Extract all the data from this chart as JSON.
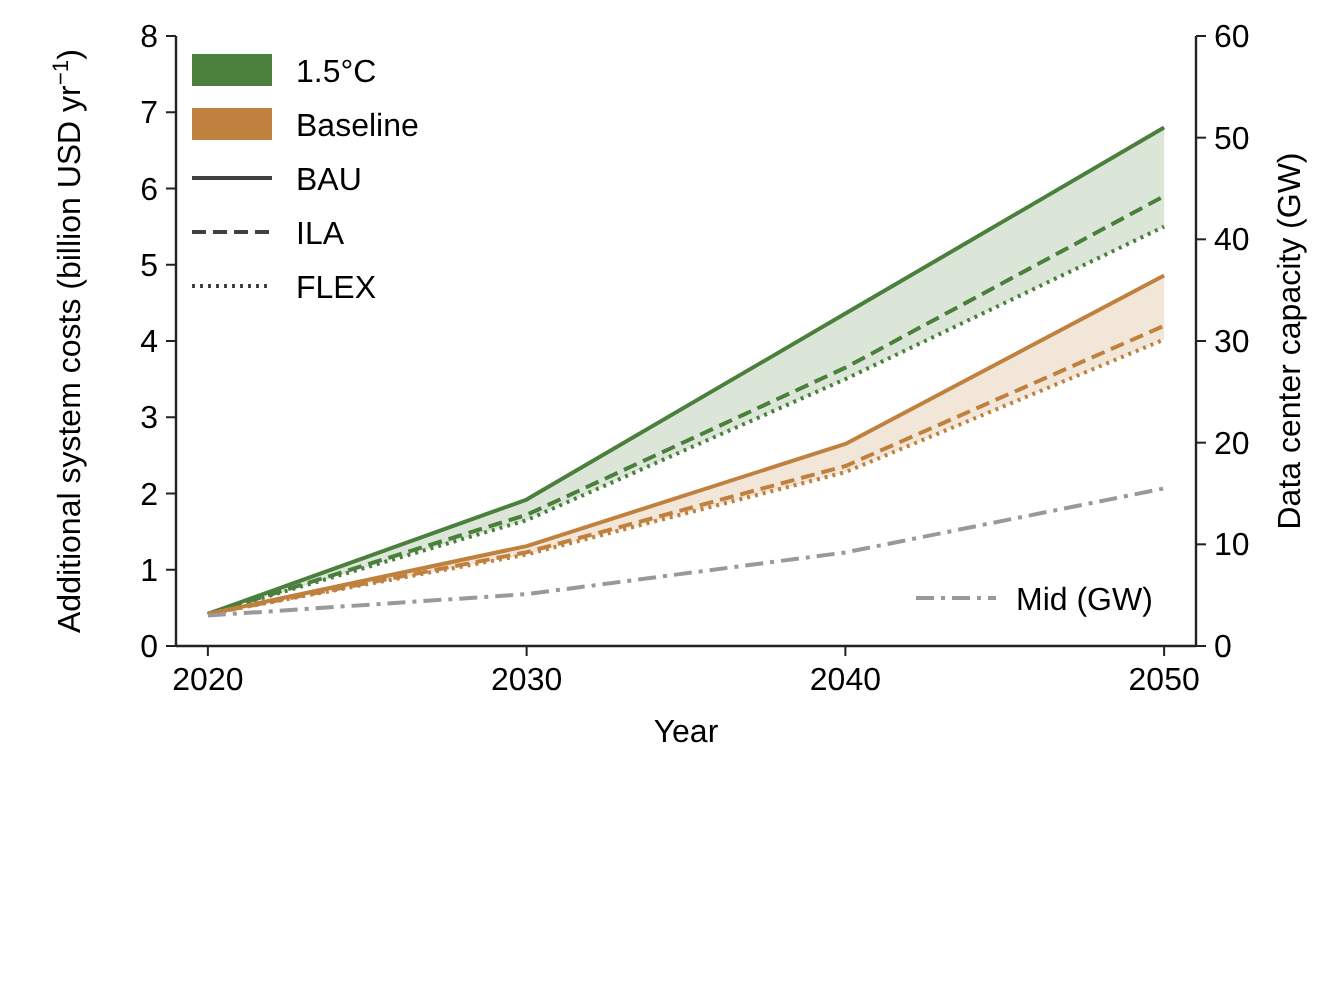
{
  "chart_data": {
    "type": "line",
    "xlabel": "Year",
    "ylabel": "Additional system costs (billion USD yr$^{−1}$)",
    "y2label": "Data center capacity (GW)",
    "x": [
      2020,
      2030,
      2040,
      2050
    ],
    "xlim": [
      2019,
      2051
    ],
    "xticks": [
      2020,
      2030,
      2040,
      2050
    ],
    "ylim": [
      0,
      8
    ],
    "yticks": [
      0,
      1,
      2,
      3,
      4,
      5,
      6,
      7,
      8
    ],
    "y2lim": [
      0,
      60
    ],
    "y2ticks": [
      0,
      10,
      20,
      30,
      40,
      50,
      60
    ],
    "legend": "top left",
    "grid": false,
    "marker": "none",
    "annotations": [
      "BAU",
      "ILA",
      "FLEX"
    ],
    "series": [
      {
        "name": "1.5°C",
        "color": "#4a7f3c",
        "line_style": "solid",
        "values": [
          0.42,
          1.92,
          4.36,
          6.8
        ],
        "lower": [
          0.42,
          1.65,
          3.5,
          5.5
        ],
        "upper": [
          0.42,
          1.92,
          4.36,
          6.8
        ]
      },
      {
        "color": "#4a7f3c",
        "line_style": "dashed",
        "values": [
          0.42,
          1.72,
          3.65,
          5.9
        ]
      },
      {
        "color": "#4a7f3c",
        "line_style": "dotted",
        "values": [
          0.42,
          1.65,
          3.5,
          5.5
        ]
      },
      {
        "name": "Baseline",
        "color": "#c0803e",
        "line_style": "solid",
        "values": [
          0.42,
          1.31,
          2.65,
          4.86
        ],
        "lower": [
          0.42,
          1.2,
          2.28,
          4.02
        ],
        "upper": [
          0.42,
          1.31,
          2.65,
          4.86
        ]
      },
      {
        "color": "#c0803e",
        "line_style": "dashed",
        "values": [
          0.42,
          1.23,
          2.36,
          4.2
        ]
      },
      {
        "color": "#c0803e",
        "line_style": "dotted",
        "values": [
          0.42,
          1.2,
          2.28,
          4.02
        ]
      },
      {
        "name": "Mid (GW)",
        "color": "#999999",
        "line_style": "dashdot",
        "axis": "y2",
        "values": [
          3,
          5.1,
          9.2,
          15.5
        ]
      }
    ]
  }
}
